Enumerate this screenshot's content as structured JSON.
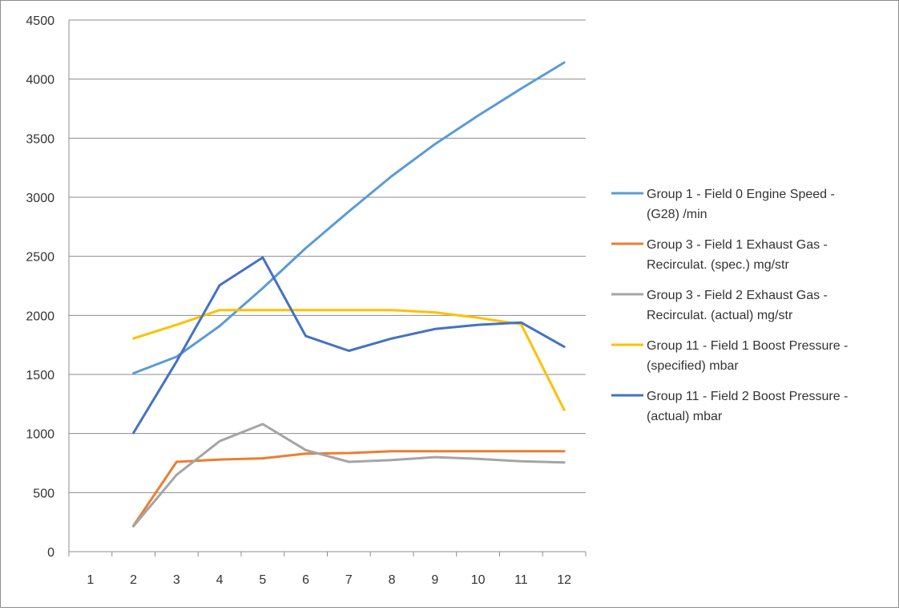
{
  "chart_data": {
    "type": "line",
    "title": "",
    "xlabel": "",
    "ylabel": "",
    "categories": [
      "1",
      "2",
      "3",
      "4",
      "5",
      "6",
      "7",
      "8",
      "9",
      "10",
      "11",
      "12"
    ],
    "ylim": [
      0,
      4500
    ],
    "yticks": [
      0,
      500,
      1000,
      1500,
      2000,
      2500,
      3000,
      3500,
      4000,
      4500
    ],
    "grid": "horizontal",
    "legend": "right",
    "series": [
      {
        "name_lines": [
          "Group 1 - Field 0 Engine Speed -",
          "(G28)  /min"
        ],
        "color": "#5b9bd5",
        "values": [
          null,
          1510,
          1650,
          1910,
          2230,
          2570,
          2880,
          3180,
          3450,
          3690,
          3920,
          4140
        ]
      },
      {
        "name_lines": [
          "Group 3 - Field 1 Exhaust Gas -",
          "Recirculat. (spec.)  mg/str"
        ],
        "color": "#ed7d31",
        "values": [
          null,
          220,
          760,
          780,
          790,
          830,
          835,
          850,
          850,
          850,
          850,
          850
        ]
      },
      {
        "name_lines": [
          "Group 3 - Field 2 Exhaust Gas -",
          "Recirculat. (actual)  mg/str"
        ],
        "color": "#a5a5a5",
        "values": [
          null,
          215,
          650,
          935,
          1080,
          860,
          760,
          775,
          800,
          785,
          765,
          755
        ]
      },
      {
        "name_lines": [
          "Group 11 - Field 1 Boost Pressure -",
          "(specified)  mbar"
        ],
        "color": "#ffc000",
        "values": [
          null,
          1805,
          1920,
          2045,
          2045,
          2045,
          2045,
          2045,
          2025,
          1980,
          1925,
          1200
        ]
      },
      {
        "name_lines": [
          "Group 11 - Field 2 Boost Pressure -",
          "(actual)  mbar"
        ],
        "color": "#4472c4",
        "values": [
          null,
          1005,
          1610,
          2255,
          2490,
          1825,
          1700,
          1805,
          1885,
          1920,
          1940,
          1735
        ]
      }
    ]
  }
}
